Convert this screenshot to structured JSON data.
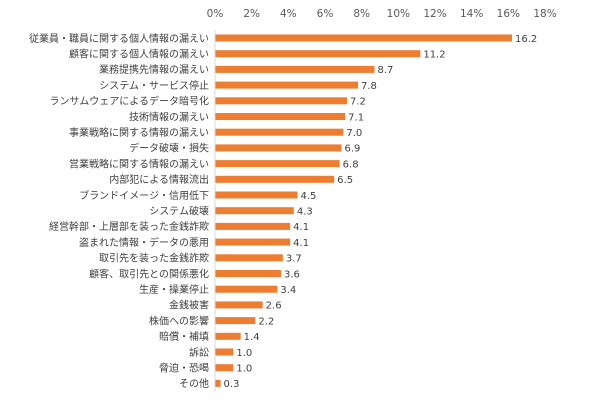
{
  "chart_data": {
    "type": "bar",
    "orientation": "horizontal",
    "title": "",
    "xlabel": "",
    "ylabel": "",
    "xlim": [
      0,
      18
    ],
    "x_ticks": [
      0,
      2,
      4,
      6,
      8,
      10,
      12,
      14,
      16,
      18
    ],
    "tick_labels": [
      "0%",
      "2%",
      "4%",
      "6%",
      "8%",
      "10%",
      "12%",
      "14%",
      "16%",
      "18%"
    ],
    "x_axis_position": "top",
    "grid": false,
    "legend": "none",
    "bar_color": "#ED7D31",
    "categories": [
      "従業員・職員に関する個人情報の漏えい",
      "顧客に関する個人情報の漏えい",
      "業務提携先情報の漏えい",
      "システム・サービス停止",
      "ランサムウェアによるデータ暗号化",
      "技術情報の漏えい",
      "事業戦略に関する情報の漏えい",
      "データ破壊・損失",
      "営業戦略に関する情報の漏えい",
      "内部犯による情報流出",
      "ブランドイメージ・信用低下",
      "システム破壊",
      "経営幹部・上層部を装った金銭詐欺",
      "盗まれた情報・データの悪用",
      "取引先を装った金銭詐欺",
      "顧客、取引先との関係悪化",
      "生産・操業停止",
      "金銭被害",
      "株価への影響",
      "賠償・補填",
      "訴訟",
      "脅迫・恐喝",
      "その他"
    ],
    "values": [
      16.2,
      11.2,
      8.7,
      7.8,
      7.2,
      7.1,
      7.0,
      6.9,
      6.8,
      6.5,
      4.5,
      4.3,
      4.1,
      4.1,
      3.7,
      3.6,
      3.4,
      2.6,
      2.2,
      1.4,
      1.0,
      1.0,
      0.3
    ],
    "value_labels": [
      "16.2",
      "11.2",
      "8.7",
      "7.8",
      "7.2",
      "7.1",
      "7.0",
      "6.9",
      "6.8",
      "6.5",
      "4.5",
      "4.3",
      "4.1",
      "4.1",
      "3.7",
      "3.6",
      "3.4",
      "2.6",
      "2.2",
      "1.4",
      "1.0",
      "1.0",
      "0.3"
    ]
  }
}
